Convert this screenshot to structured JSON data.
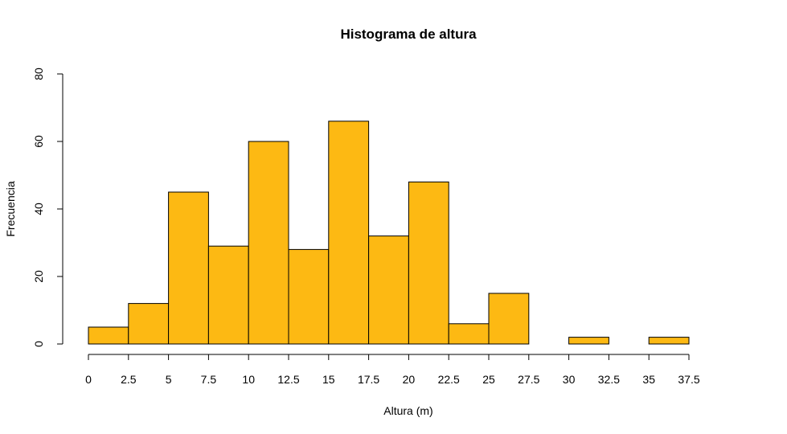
{
  "chart_data": {
    "type": "bar",
    "title": "Histograma de altura",
    "xlabel": "Altura (m)",
    "ylabel": "Frecuencia",
    "bar_color": "#FDB913",
    "bin_edges": [
      0,
      2.5,
      5,
      7.5,
      10,
      12.5,
      15,
      17.5,
      20,
      22.5,
      25,
      27.5,
      30,
      32.5,
      35,
      37.5
    ],
    "values": [
      5,
      12,
      45,
      29,
      60,
      28,
      66,
      32,
      48,
      6,
      15,
      0,
      2,
      0,
      2
    ],
    "x_ticks": [
      "0",
      "2.5",
      "5",
      "7.5",
      "10",
      "12.5",
      "15",
      "17.5",
      "20",
      "22.5",
      "25",
      "27.5",
      "30",
      "32.5",
      "35",
      "37.5"
    ],
    "y_ticks": [
      "0",
      "20",
      "40",
      "60",
      "80"
    ],
    "xlim": [
      0,
      37.5
    ],
    "ylim": [
      0,
      80
    ],
    "grid": false
  }
}
